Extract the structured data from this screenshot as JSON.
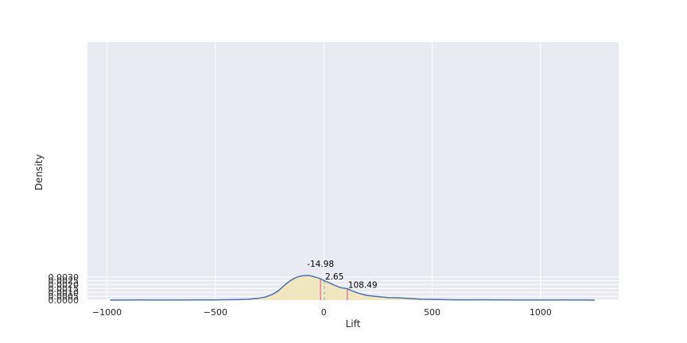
{
  "chart_data": {
    "type": "area",
    "xlabel": "Lift",
    "ylabel": "Density",
    "xlim": [
      -1090,
      1360
    ],
    "ylim": [
      0,
      0.0334
    ],
    "xticks": [
      -1000,
      -500,
      0,
      500,
      1000
    ],
    "xtick_labels": [
      "−1000",
      "−500",
      "0",
      "500",
      "1000"
    ],
    "yticks": [
      0.0,
      0.0005,
      0.001,
      0.0015,
      0.002,
      0.0025,
      0.003
    ],
    "ytick_labels": [
      "0.0000",
      "0.0005",
      "0.0010",
      "0.0015",
      "0.0020",
      "0.0025",
      "0.0030"
    ],
    "grid": true,
    "colors": {
      "background": "#eaeaf2",
      "grid": "#ffffff",
      "curve": "#4c72b0",
      "fill": "#f0e6c0",
      "interval_line": "#dd6fa0",
      "point_line": "#a9b6dd"
    },
    "density_curve": {
      "x": [
        -985,
        -900,
        -850,
        -800,
        -700,
        -600,
        -500,
        -450,
        -400,
        -350,
        -300,
        -270,
        -240,
        -210,
        -190,
        -170,
        -150,
        -130,
        -110,
        -90,
        -75,
        -65,
        -55,
        -45,
        -35,
        -25,
        -15,
        0,
        20,
        40,
        60,
        80,
        108.49,
        130,
        160,
        200,
        250,
        300,
        340,
        370,
        400,
        450,
        500,
        550,
        600,
        650,
        700,
        750,
        800,
        850,
        900,
        950,
        1000,
        1050,
        1100,
        1150,
        1200,
        1250
      ],
      "y": [
        0.0,
        1e-05,
        2e-05,
        1e-05,
        1e-05,
        2e-05,
        3e-05,
        5e-05,
        7e-05,
        0.00012,
        0.00025,
        0.0004,
        0.0007,
        0.0012,
        0.0017,
        0.0022,
        0.0026,
        0.0029,
        0.0031,
        0.00318,
        0.0032,
        0.00318,
        0.00312,
        0.00303,
        0.00295,
        0.00287,
        0.00275,
        0.00255,
        0.0023,
        0.00205,
        0.0018,
        0.0016,
        0.00148,
        0.0012,
        0.0009,
        0.0006,
        0.00045,
        0.00032,
        0.00029,
        0.00026,
        0.0002,
        0.00012,
        9e-05,
        6e-05,
        4e-05,
        3e-05,
        4e-05,
        4e-05,
        3e-05,
        2e-05,
        1e-05,
        1e-05,
        1e-05,
        1e-05,
        2e-05,
        1e-05,
        1e-05,
        0.0
      ]
    },
    "markers": [
      {
        "value": -14.98,
        "label": "-14.98",
        "style": "solid",
        "density": 0.00275
      },
      {
        "value": 2.65,
        "label": "2.65",
        "style": "dashed",
        "density": 0.00258
      },
      {
        "value": 108.49,
        "label": "108.49",
        "style": "solid",
        "density": 0.00148
      }
    ]
  }
}
